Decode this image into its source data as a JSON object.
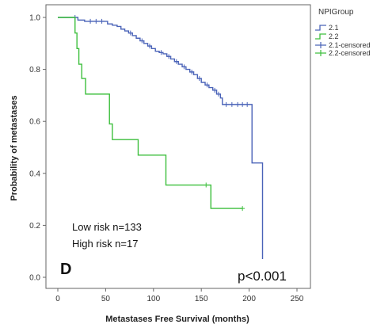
{
  "chart_data": {
    "type": "line",
    "step": true,
    "title": "",
    "xlabel": "Metastases Free Survival (months)",
    "ylabel": "Probability of metastases",
    "xlim": [
      0,
      250
    ],
    "ylim": [
      0.0,
      1.0
    ],
    "xticks": [
      0,
      50,
      100,
      150,
      200,
      250
    ],
    "yticks": [
      0.0,
      0.2,
      0.4,
      0.6,
      0.8,
      1.0
    ],
    "ytick_labels": [
      "0.0",
      "0.2",
      "0.4",
      "0.6",
      "0.8",
      "1.0"
    ],
    "grid": false,
    "legend": {
      "title": "NPIGroup",
      "placement": "top-right",
      "entries": [
        {
          "label": "2.1",
          "color": "#4a63b8",
          "symbol": "line"
        },
        {
          "label": "2.2",
          "color": "#3dbf3d",
          "symbol": "line"
        },
        {
          "label": "2.1-censored",
          "color": "#4a63b8",
          "symbol": "plus"
        },
        {
          "label": "2.2-censored",
          "color": "#3dbf3d",
          "symbol": "plus"
        }
      ]
    },
    "series": [
      {
        "name": "2.1",
        "color": "#4a63b8",
        "steps": [
          [
            0,
            1.0
          ],
          [
            21,
            0.99
          ],
          [
            28,
            0.985
          ],
          [
            52,
            0.975
          ],
          [
            57,
            0.97
          ],
          [
            62,
            0.965
          ],
          [
            66,
            0.955
          ],
          [
            70,
            0.948
          ],
          [
            74,
            0.94
          ],
          [
            78,
            0.93
          ],
          [
            82,
            0.92
          ],
          [
            86,
            0.91
          ],
          [
            90,
            0.9
          ],
          [
            94,
            0.89
          ],
          [
            98,
            0.88
          ],
          [
            102,
            0.87
          ],
          [
            106,
            0.865
          ],
          [
            110,
            0.86
          ],
          [
            114,
            0.85
          ],
          [
            118,
            0.84
          ],
          [
            122,
            0.83
          ],
          [
            126,
            0.82
          ],
          [
            130,
            0.81
          ],
          [
            134,
            0.8
          ],
          [
            138,
            0.79
          ],
          [
            142,
            0.78
          ],
          [
            146,
            0.765
          ],
          [
            150,
            0.75
          ],
          [
            154,
            0.74
          ],
          [
            158,
            0.73
          ],
          [
            162,
            0.72
          ],
          [
            166,
            0.705
          ],
          [
            170,
            0.69
          ],
          [
            172,
            0.665
          ],
          [
            203,
            0.44
          ],
          [
            214,
            0.07
          ]
        ],
        "end_x": 214,
        "censored": [
          [
            18,
            1.0
          ],
          [
            34,
            0.985
          ],
          [
            40,
            0.985
          ],
          [
            46,
            0.985
          ],
          [
            76,
            0.94
          ],
          [
            88,
            0.91
          ],
          [
            96,
            0.89
          ],
          [
            108,
            0.865
          ],
          [
            116,
            0.85
          ],
          [
            124,
            0.83
          ],
          [
            132,
            0.81
          ],
          [
            140,
            0.79
          ],
          [
            148,
            0.765
          ],
          [
            156,
            0.74
          ],
          [
            164,
            0.72
          ],
          [
            168,
            0.705
          ],
          [
            176,
            0.665
          ],
          [
            182,
            0.665
          ],
          [
            188,
            0.665
          ],
          [
            193,
            0.665
          ],
          [
            198,
            0.665
          ]
        ]
      },
      {
        "name": "2.2",
        "color": "#3dbf3d",
        "steps": [
          [
            0,
            1.0
          ],
          [
            18,
            0.94
          ],
          [
            20,
            0.88
          ],
          [
            22,
            0.82
          ],
          [
            25,
            0.765
          ],
          [
            29,
            0.705
          ],
          [
            54,
            0.59
          ],
          [
            57,
            0.53
          ],
          [
            84,
            0.47
          ],
          [
            113,
            0.355
          ],
          [
            160,
            0.265
          ]
        ],
        "end_x": 193,
        "censored": [
          [
            155,
            0.355
          ],
          [
            193,
            0.265
          ]
        ]
      }
    ],
    "annotations": {
      "low_risk": "Low risk n=133",
      "high_risk": "High risk n=17",
      "panel": "D",
      "p_value": "p<0.001"
    }
  }
}
